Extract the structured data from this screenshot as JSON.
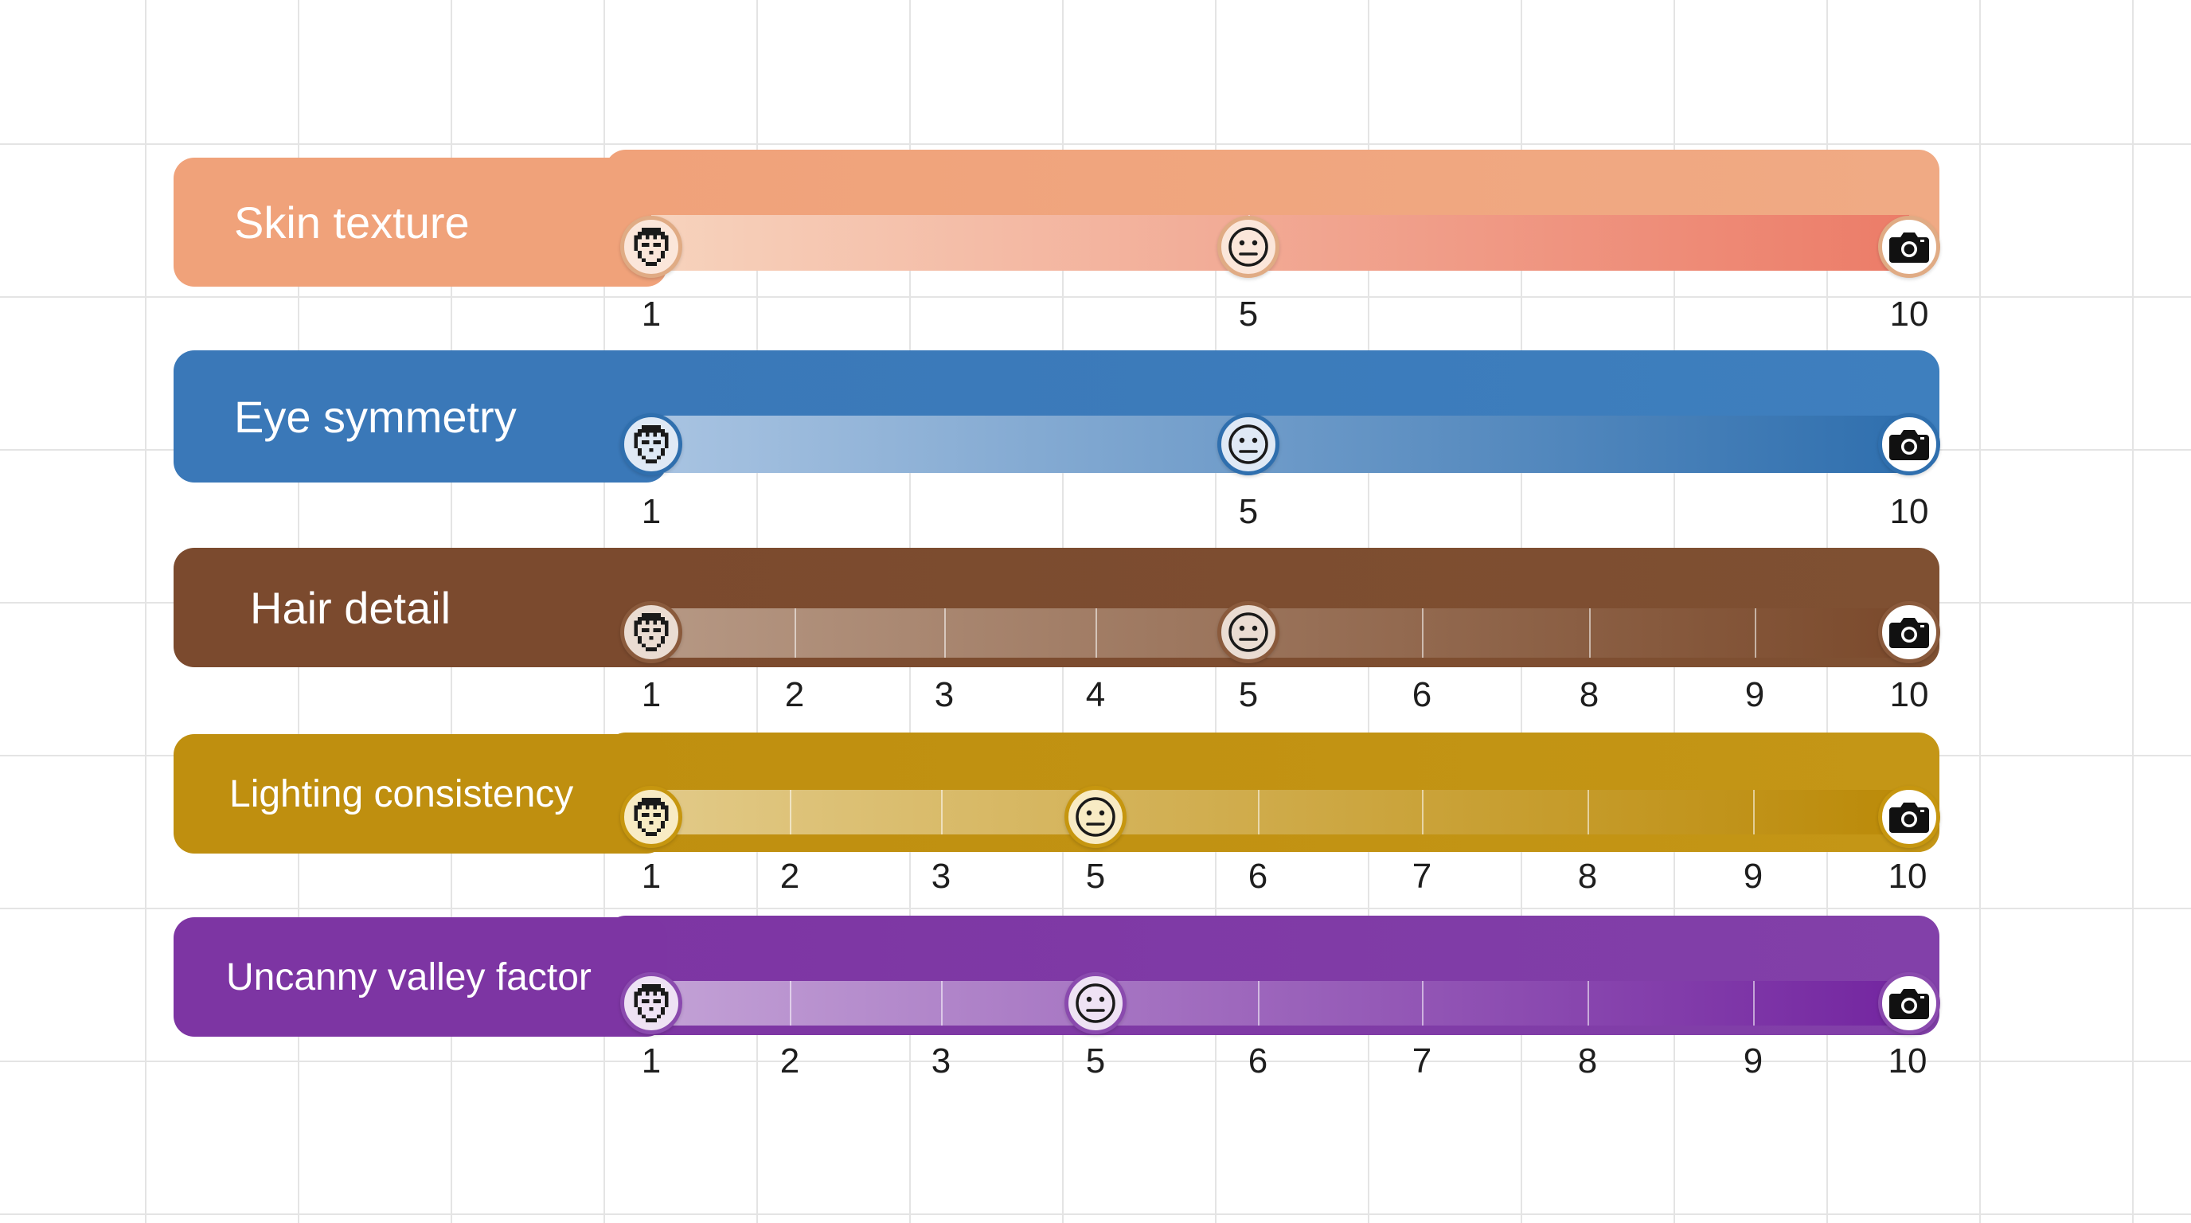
{
  "scales": [
    {
      "label": "Skin texture",
      "color_start": "#f0a27a",
      "color_end": "#f0aa84",
      "color_dark": "#ec7c68",
      "track_light": "#f7d3bd",
      "ring": "#e0ab84",
      "marker_bg": "#fbe6da",
      "ticks": [
        "1",
        "5",
        "10"
      ],
      "marker_values": [
        1,
        5,
        10
      ]
    },
    {
      "label": "Eye symmetry",
      "color_start": "#3a78b8",
      "color_end": "#3e7fbe",
      "color_dark": "#2f6fae",
      "track_light": "#a9c4e2",
      "ring": "#2f6fae",
      "marker_bg": "#dfe9f5",
      "ticks": [
        "1",
        "5",
        "10"
      ],
      "marker_values": [
        1,
        5,
        10
      ]
    },
    {
      "label": "Hair detail",
      "color_start": "#7b4a2e",
      "color_end": "#7f5032",
      "color_dark": "#7b4a2c",
      "track_light": "#b69884",
      "ring": "#8a5a3c",
      "marker_bg": "#eadcd2",
      "ticks": [
        "1",
        "2",
        "3",
        "4",
        "5",
        "6",
        "8",
        "9",
        "10"
      ],
      "marker_values": [
        1,
        5,
        10
      ]
    },
    {
      "label": "Lighting consistency",
      "color_start": "#bf8f0f",
      "color_end": "#c49616",
      "color_dark": "#bb8a08",
      "track_light": "#e2ca88",
      "ring": "#c6960f",
      "marker_bg": "#f8ebc4",
      "ticks": [
        "1",
        "2",
        "3",
        "5",
        "6",
        "7",
        "8",
        "9",
        "10"
      ],
      "marker_values": [
        1,
        5,
        10
      ]
    },
    {
      "label": "Uncanny valley factor",
      "color_start": "#7d35a3",
      "color_end": "#8240a9",
      "color_dark": "#7325a0",
      "track_light": "#c3a2d6",
      "ring": "#8a4aae",
      "marker_bg": "#eee2f4",
      "ticks": [
        "1",
        "2",
        "3",
        "5",
        "6",
        "7",
        "8",
        "9",
        "10"
      ],
      "marker_values": [
        1,
        5,
        10
      ]
    }
  ],
  "icons": {
    "low_marker": "pixel-face-icon",
    "mid_marker": "neutral-face-icon",
    "high_marker": "camera-icon"
  }
}
